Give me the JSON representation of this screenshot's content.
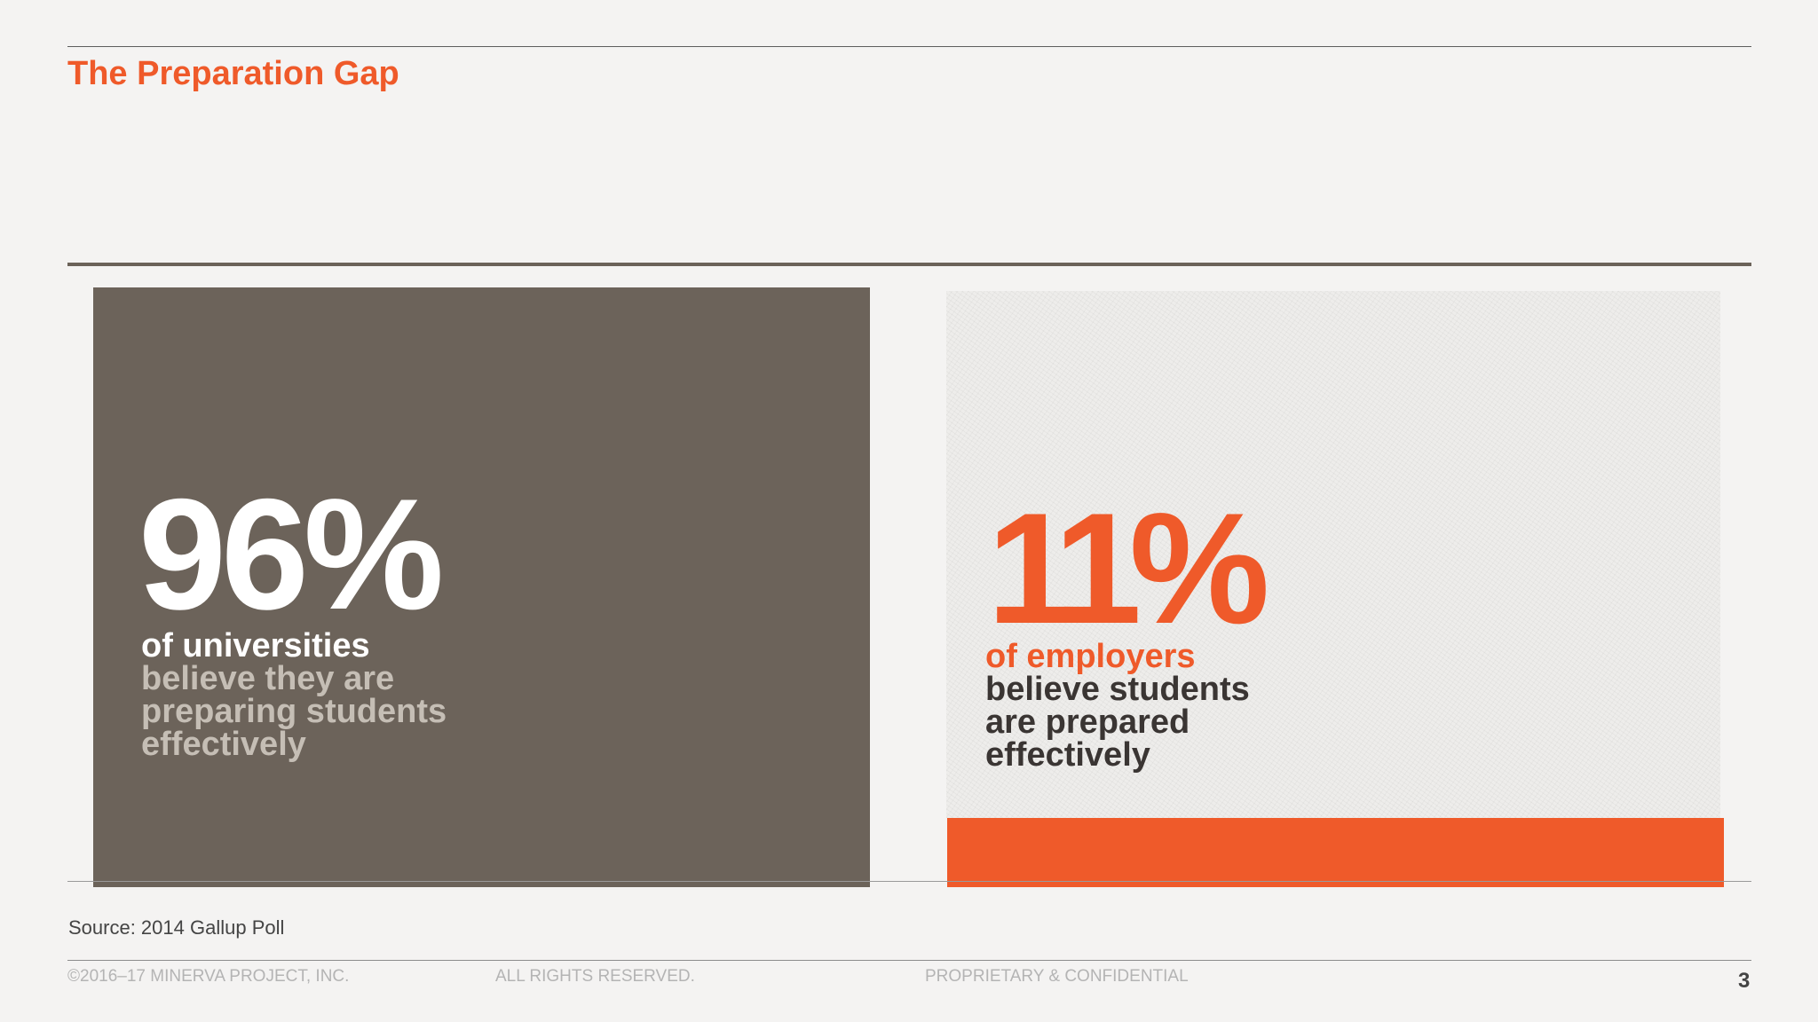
{
  "slide": {
    "title": "The Preparation Gap"
  },
  "stats": {
    "left": {
      "value": "96%",
      "lead": "of universities",
      "lines": [
        "believe they are",
        "preparing students",
        "effectively"
      ]
    },
    "right": {
      "value": "11%",
      "lead": "of employers",
      "lines": [
        "believe students",
        "are prepared",
        "effectively"
      ]
    }
  },
  "source": "Source: 2014 Gallup Poll",
  "footer": {
    "copyright": "©2016–17 MINERVA PROJECT, INC.",
    "rights": "ALL RIGHTS RESERVED.",
    "confidential": "PROPRIETARY & CONFIDENTIAL",
    "page_number": "3"
  },
  "colors": {
    "accent": "#ef5a2a",
    "panel_dark": "#6c635a",
    "background": "#f4f3f2"
  }
}
